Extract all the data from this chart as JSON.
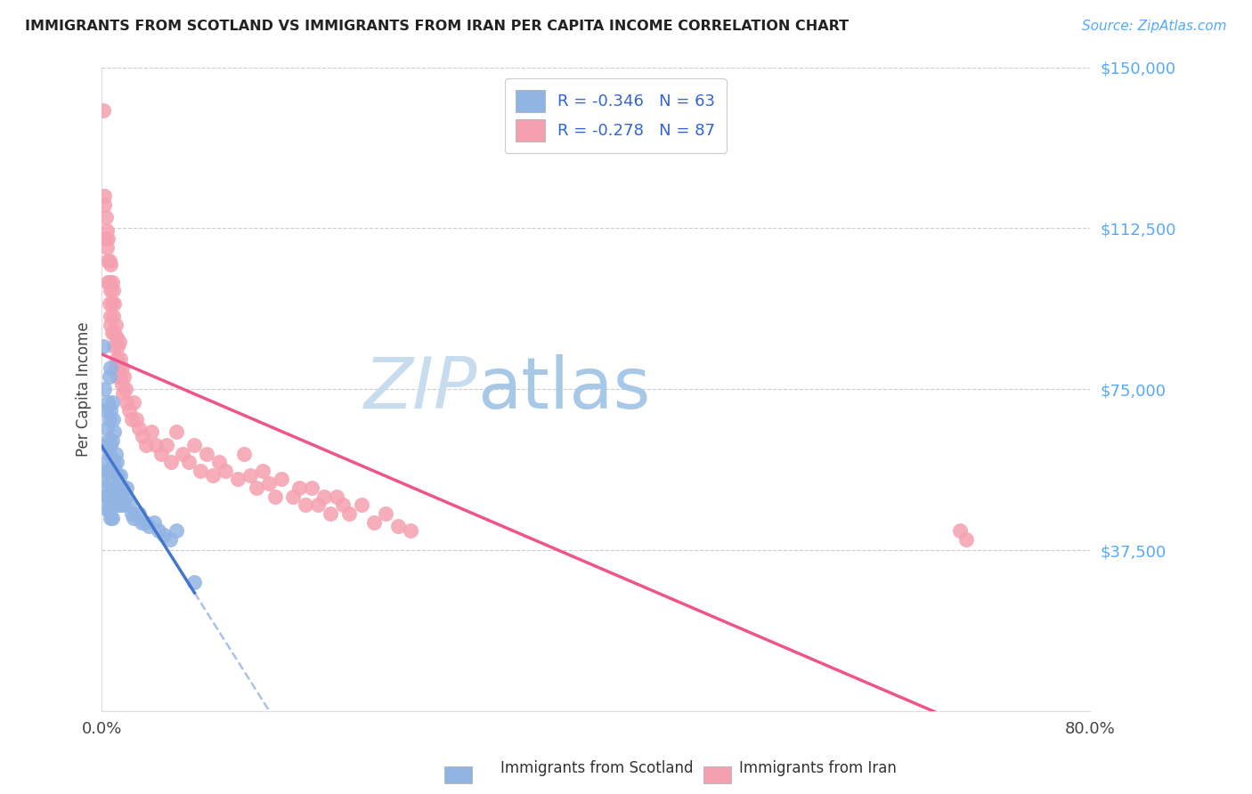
{
  "title": "IMMIGRANTS FROM SCOTLAND VS IMMIGRANTS FROM IRAN PER CAPITA INCOME CORRELATION CHART",
  "source": "Source: ZipAtlas.com",
  "ylabel": "Per Capita Income",
  "x_min": 0.0,
  "x_max": 0.8,
  "y_min": 0,
  "y_max": 150000,
  "y_ticks": [
    0,
    37500,
    75000,
    112500,
    150000
  ],
  "y_tick_labels": [
    "",
    "$37,500",
    "$75,000",
    "$112,500",
    "$150,000"
  ],
  "x_ticks": [
    0.0,
    0.2,
    0.4,
    0.6,
    0.8
  ],
  "x_tick_labels": [
    "0.0%",
    "",
    "",
    "",
    "80.0%"
  ],
  "legend_r_scotland": "-0.346",
  "legend_n_scotland": "63",
  "legend_r_iran": "-0.278",
  "legend_n_iran": "87",
  "scotland_color": "#92b4e3",
  "iran_color": "#f5a0b0",
  "scotland_line_color": "#4477CC",
  "iran_line_color": "#EE5588",
  "watermark_zip": "ZIP",
  "watermark_atlas": "atlas",
  "background_color": "#FFFFFF",
  "scotland_x": [
    0.001,
    0.002,
    0.002,
    0.003,
    0.003,
    0.003,
    0.004,
    0.004,
    0.004,
    0.004,
    0.005,
    0.005,
    0.005,
    0.005,
    0.006,
    0.006,
    0.006,
    0.006,
    0.006,
    0.007,
    0.007,
    0.007,
    0.007,
    0.007,
    0.007,
    0.008,
    0.008,
    0.008,
    0.008,
    0.008,
    0.009,
    0.009,
    0.009,
    0.01,
    0.01,
    0.01,
    0.011,
    0.011,
    0.012,
    0.012,
    0.013,
    0.013,
    0.014,
    0.015,
    0.015,
    0.016,
    0.017,
    0.018,
    0.019,
    0.02,
    0.022,
    0.024,
    0.026,
    0.03,
    0.032,
    0.035,
    0.038,
    0.042,
    0.046,
    0.05,
    0.055,
    0.06,
    0.075
  ],
  "scotland_y": [
    85000,
    75000,
    55000,
    70000,
    62000,
    50000,
    66000,
    58000,
    52000,
    47000,
    72000,
    63000,
    56000,
    50000,
    78000,
    68000,
    60000,
    53000,
    47000,
    80000,
    70000,
    62000,
    56000,
    50000,
    45000,
    72000,
    63000,
    56000,
    50000,
    45000,
    68000,
    58000,
    50000,
    65000,
    57000,
    50000,
    60000,
    52000,
    58000,
    50000,
    55000,
    48000,
    52000,
    55000,
    48000,
    50000,
    52000,
    48000,
    50000,
    52000,
    48000,
    46000,
    45000,
    46000,
    44000,
    44000,
    43000,
    44000,
    42000,
    41000,
    40000,
    42000,
    30000
  ],
  "iran_x": [
    0.001,
    0.002,
    0.002,
    0.003,
    0.003,
    0.004,
    0.004,
    0.005,
    0.005,
    0.005,
    0.006,
    0.006,
    0.006,
    0.007,
    0.007,
    0.007,
    0.007,
    0.008,
    0.008,
    0.008,
    0.009,
    0.009,
    0.01,
    0.01,
    0.01,
    0.011,
    0.011,
    0.012,
    0.012,
    0.013,
    0.013,
    0.014,
    0.014,
    0.015,
    0.015,
    0.016,
    0.016,
    0.017,
    0.018,
    0.019,
    0.02,
    0.022,
    0.024,
    0.026,
    0.028,
    0.03,
    0.033,
    0.036,
    0.04,
    0.044,
    0.048,
    0.052,
    0.056,
    0.06,
    0.065,
    0.07,
    0.075,
    0.08,
    0.085,
    0.09,
    0.095,
    0.1,
    0.11,
    0.115,
    0.12,
    0.125,
    0.13,
    0.135,
    0.14,
    0.145,
    0.155,
    0.16,
    0.165,
    0.17,
    0.175,
    0.18,
    0.185,
    0.19,
    0.195,
    0.2,
    0.21,
    0.22,
    0.23,
    0.24,
    0.25,
    0.695,
    0.7
  ],
  "iran_y": [
    140000,
    120000,
    118000,
    110000,
    115000,
    108000,
    112000,
    100000,
    105000,
    110000,
    95000,
    100000,
    105000,
    92000,
    98000,
    104000,
    90000,
    95000,
    100000,
    88000,
    92000,
    98000,
    88000,
    95000,
    85000,
    90000,
    80000,
    87000,
    82000,
    85000,
    78000,
    80000,
    86000,
    78000,
    82000,
    76000,
    80000,
    74000,
    78000,
    75000,
    72000,
    70000,
    68000,
    72000,
    68000,
    66000,
    64000,
    62000,
    65000,
    62000,
    60000,
    62000,
    58000,
    65000,
    60000,
    58000,
    62000,
    56000,
    60000,
    55000,
    58000,
    56000,
    54000,
    60000,
    55000,
    52000,
    56000,
    53000,
    50000,
    54000,
    50000,
    52000,
    48000,
    52000,
    48000,
    50000,
    46000,
    50000,
    48000,
    46000,
    48000,
    44000,
    46000,
    43000,
    42000,
    42000,
    40000
  ]
}
